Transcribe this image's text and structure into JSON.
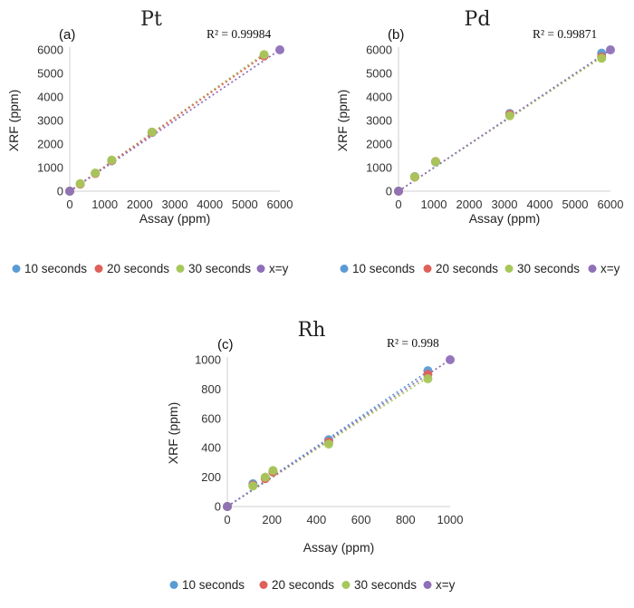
{
  "colors": {
    "10 seconds": "#5b9bd5",
    "20 seconds": "#e0605a",
    "30 seconds": "#a6c85a",
    "x=y": "#8f6fb8"
  },
  "chart_data": [
    {
      "type": "scatter",
      "title": "Pt",
      "panel_label": "(a)",
      "r2_text": "R² = 0.99984",
      "xlabel": "Assay (ppm)",
      "ylabel": "XRF (ppm)",
      "xlim": [
        0,
        6000
      ],
      "ylim": [
        0,
        6000
      ],
      "xticks": [
        0,
        1000,
        2000,
        3000,
        4000,
        5000,
        6000
      ],
      "yticks": [
        0,
        1000,
        2000,
        3000,
        4000,
        5000,
        6000
      ],
      "series": [
        {
          "name": "10 seconds",
          "x": [
            0,
            300,
            730,
            1200,
            2350,
            5550
          ],
          "y": [
            0,
            310,
            760,
            1290,
            2490,
            5760
          ]
        },
        {
          "name": "20 seconds",
          "x": [
            0,
            300,
            730,
            1200,
            2350,
            5550
          ],
          "y": [
            0,
            300,
            750,
            1300,
            2500,
            5740
          ]
        },
        {
          "name": "30 seconds",
          "x": [
            0,
            300,
            730,
            1200,
            2350,
            5550
          ],
          "y": [
            0,
            320,
            770,
            1320,
            2510,
            5800
          ]
        },
        {
          "name": "x=y",
          "x": [
            0,
            6000
          ],
          "y": [
            0,
            6000
          ]
        }
      ],
      "trendlines": [
        {
          "series": "30 seconds",
          "x": [
            0,
            5550
          ],
          "y": [
            0,
            5830
          ]
        },
        {
          "series": "20 seconds",
          "x": [
            0,
            5550
          ],
          "y": [
            0,
            5760
          ]
        },
        {
          "series": "x=y",
          "x": [
            0,
            6000
          ],
          "y": [
            0,
            6000
          ]
        }
      ],
      "legend": [
        "10 seconds",
        "20 seconds",
        "30 seconds",
        "x=y"
      ]
    },
    {
      "type": "scatter",
      "title": "Pd",
      "panel_label": "(b)",
      "r2_text": "R² = 0.99871",
      "xlabel": "Assay (ppm)",
      "ylabel": "XRF (ppm)",
      "xlim": [
        0,
        6000
      ],
      "ylim": [
        0,
        6000
      ],
      "xticks": [
        0,
        1000,
        2000,
        3000,
        4000,
        5000,
        6000
      ],
      "yticks": [
        0,
        1000,
        2000,
        3000,
        4000,
        5000,
        6000
      ],
      "series": [
        {
          "name": "10 seconds",
          "x": [
            0,
            460,
            1050,
            3150,
            5750
          ],
          "y": [
            0,
            620,
            1240,
            3300,
            5860
          ]
        },
        {
          "name": "20 seconds",
          "x": [
            0,
            460,
            1050,
            3150,
            5750
          ],
          "y": [
            0,
            600,
            1260,
            3260,
            5700
          ]
        },
        {
          "name": "30 seconds",
          "x": [
            0,
            460,
            1050,
            3150,
            5750
          ],
          "y": [
            0,
            610,
            1250,
            3200,
            5640
          ]
        },
        {
          "name": "x=y",
          "x": [
            0,
            6000
          ],
          "y": [
            0,
            6000
          ]
        }
      ],
      "trendlines": [
        {
          "series": "30 seconds",
          "x": [
            0,
            5750
          ],
          "y": [
            0,
            5680
          ]
        },
        {
          "series": "x=y",
          "x": [
            0,
            6000
          ],
          "y": [
            0,
            6000
          ]
        }
      ],
      "legend": [
        "10 seconds",
        "20 seconds",
        "30 seconds",
        "x=y"
      ]
    },
    {
      "type": "scatter",
      "title": "Rh",
      "panel_label": "(c)",
      "r2_text": "R² = 0.998",
      "xlabel": "Assay (ppm)",
      "ylabel": "XRF (ppm)",
      "xlim": [
        0,
        1000
      ],
      "ylim": [
        0,
        1000
      ],
      "xticks": [
        0,
        200,
        400,
        600,
        800,
        1000
      ],
      "yticks": [
        0,
        200,
        400,
        600,
        800,
        1000
      ],
      "series": [
        {
          "name": "10 seconds",
          "x": [
            0,
            115,
            170,
            205,
            455,
            900
          ],
          "y": [
            0,
            155,
            195,
            240,
            455,
            925
          ]
        },
        {
          "name": "20 seconds",
          "x": [
            0,
            115,
            170,
            205,
            455,
            900
          ],
          "y": [
            0,
            145,
            190,
            235,
            440,
            900
          ]
        },
        {
          "name": "30 seconds",
          "x": [
            0,
            115,
            170,
            205,
            455,
            900
          ],
          "y": [
            0,
            140,
            200,
            245,
            425,
            870
          ]
        },
        {
          "name": "x=y",
          "x": [
            0,
            1000
          ],
          "y": [
            0,
            1000
          ]
        }
      ],
      "trendlines": [
        {
          "series": "30 seconds",
          "x": [
            0,
            900
          ],
          "y": [
            0,
            880
          ]
        },
        {
          "series": "10 seconds",
          "x": [
            0,
            900
          ],
          "y": [
            0,
            920
          ]
        },
        {
          "series": "x=y",
          "x": [
            0,
            1000
          ],
          "y": [
            0,
            1000
          ]
        }
      ],
      "legend": [
        "10 seconds",
        "20 seconds",
        "30 seconds",
        "x=y"
      ]
    }
  ]
}
